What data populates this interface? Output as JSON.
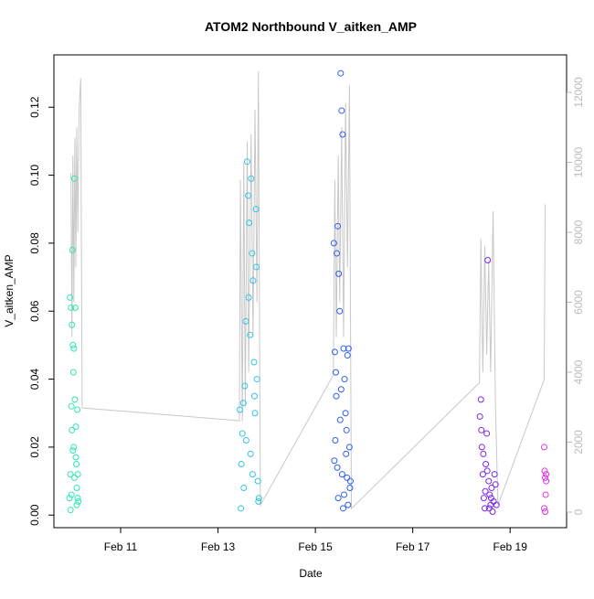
{
  "chart_data": {
    "type": "scatter",
    "title": "ATOM2 Northbound V_aitken_AMP",
    "x_label": "Date",
    "y_label": "V_aitken_AMP",
    "xlim": [
      9.63,
      20.16
    ],
    "ylim": [
      -0.0037,
      0.1354
    ],
    "y2lim": [
      -444,
      13072
    ],
    "xticks": [
      {
        "value": 11,
        "label": "Feb 11"
      },
      {
        "value": 13,
        "label": "Feb 13"
      },
      {
        "value": 15,
        "label": "Feb 15"
      },
      {
        "value": 17,
        "label": "Feb 17"
      },
      {
        "value": 19,
        "label": "Feb 19"
      }
    ],
    "yticks": [
      {
        "value": 0,
        "label": "0.00"
      },
      {
        "value": 0.02,
        "label": "0.02"
      },
      {
        "value": 0.04,
        "label": "0.04"
      },
      {
        "value": 0.06,
        "label": "0.06"
      },
      {
        "value": 0.08,
        "label": "0.08"
      },
      {
        "value": 0.1,
        "label": "0.10"
      },
      {
        "value": 0.12,
        "label": "0.12"
      }
    ],
    "y2ticks": [
      0,
      2000,
      4000,
      6000,
      8000,
      10000,
      12000
    ],
    "series": [
      {
        "axis": "y2",
        "color": "#c8c8c8",
        "x": [
          9.98,
          10.0,
          10.02,
          10.04,
          10.06,
          10.08,
          10.1,
          10.12,
          10.15,
          10.18,
          10.21,
          13.44,
          13.46,
          13.5,
          13.53,
          13.56,
          13.6,
          13.63,
          13.68,
          13.72,
          13.76,
          13.8,
          13.83,
          13.87,
          15.37,
          15.4,
          15.43,
          15.47,
          15.5,
          15.54,
          15.58,
          15.62,
          15.66,
          15.7,
          15.74,
          18.37,
          18.4,
          18.44,
          18.48,
          18.52,
          18.56,
          18.6,
          18.65,
          18.7,
          18.75,
          19.7,
          19.72
        ],
        "values": [
          9700,
          5000,
          10200,
          6000,
          10700,
          7000,
          11000,
          8000,
          11600,
          12400,
          2980,
          2614,
          9500,
          2600,
          10000,
          3000,
          10600,
          4000,
          10800,
          5000,
          11500,
          6000,
          12600,
          200,
          3920,
          9500,
          5000,
          10200,
          6000,
          11000,
          5000,
          11700,
          7000,
          12200,
          100,
          3700,
          7800,
          4000,
          7600,
          4500,
          7200,
          4000,
          8600,
          3000,
          200,
          3790,
          8800
        ]
      },
      {
        "color": "#2ee8b6",
        "x": [
          9.95,
          9.96,
          9.97,
          9.98,
          9.99,
          10.0,
          10.01,
          10.02,
          10.03,
          10.04,
          10.05,
          10.06,
          10.07,
          10.08,
          10.09,
          10.1,
          10.11,
          10.12,
          10.13,
          9.97,
          10.0,
          10.04,
          10.08,
          10.1,
          10.12,
          10.05,
          10.02,
          9.99
        ],
        "values": [
          0.005,
          0.064,
          0.012,
          0.061,
          0.032,
          0.056,
          0.078,
          0.05,
          0.042,
          0.02,
          0.099,
          0.034,
          0.061,
          0.026,
          0.015,
          0.003,
          0.031,
          0.012,
          0.004,
          0.0015,
          0.025,
          0.049,
          0.017,
          0.008,
          0.005,
          0.011,
          0.019,
          0.006
        ]
      },
      {
        "color": "#33c4e6",
        "x": [
          13.45,
          13.48,
          13.5,
          13.52,
          13.55,
          13.57,
          13.6,
          13.62,
          13.64,
          13.66,
          13.68,
          13.7,
          13.72,
          13.74,
          13.76,
          13.78,
          13.8,
          13.82,
          13.84,
          13.47,
          13.53,
          13.58,
          13.63,
          13.67,
          13.71,
          13.75,
          13.79,
          13.83
        ],
        "values": [
          0.031,
          0.015,
          0.024,
          0.033,
          0.038,
          0.057,
          0.104,
          0.094,
          0.086,
          0.053,
          0.099,
          0.077,
          0.069,
          0.045,
          0.03,
          0.09,
          0.04,
          0.01,
          0.005,
          0.002,
          0.008,
          0.022,
          0.064,
          0.018,
          0.012,
          0.035,
          0.073,
          0.004
        ]
      },
      {
        "color": "#2f5ff0",
        "x": [
          15.38,
          15.4,
          15.42,
          15.44,
          15.46,
          15.48,
          15.5,
          15.52,
          15.54,
          15.56,
          15.58,
          15.6,
          15.62,
          15.64,
          15.66,
          15.68,
          15.7,
          15.72,
          15.39,
          15.43,
          15.47,
          15.51,
          15.55,
          15.59,
          15.63,
          15.67,
          15.71,
          15.41,
          15.45,
          15.53,
          15.57,
          15.65
        ],
        "values": [
          0.08,
          0.048,
          0.042,
          0.077,
          0.085,
          0.071,
          0.06,
          0.13,
          0.119,
          0.112,
          0.049,
          0.04,
          0.03,
          0.025,
          0.047,
          0.049,
          0.02,
          0.01,
          0.016,
          0.035,
          0.005,
          0.028,
          0.012,
          0.006,
          0.018,
          0.003,
          0.008,
          0.022,
          0.014,
          0.037,
          0.002,
          0.011
        ]
      },
      {
        "color": "#7a28ea",
        "x": [
          18.38,
          18.4,
          18.42,
          18.44,
          18.46,
          18.48,
          18.5,
          18.52,
          18.54,
          18.56,
          18.58,
          18.6,
          18.62,
          18.64,
          18.66,
          18.68,
          18.7,
          18.72,
          18.41,
          18.45,
          18.49,
          18.53,
          18.57,
          18.61
        ],
        "values": [
          0.029,
          0.034,
          0.02,
          0.012,
          0.005,
          0.002,
          0.015,
          0.024,
          0.075,
          0.01,
          0.006,
          0.003,
          0.008,
          0.001,
          0.004,
          0.012,
          0.009,
          0.003,
          0.025,
          0.018,
          0.007,
          0.013,
          0.002,
          0.005
        ]
      },
      {
        "color": "#e632e6",
        "x": [
          19.7,
          19.71,
          19.72,
          19.73,
          19.74,
          19.7,
          19.72,
          19.74
        ],
        "values": [
          0.02,
          0.013,
          0.011,
          0.006,
          0.01,
          0.002,
          0.001,
          0.012
        ]
      }
    ]
  }
}
